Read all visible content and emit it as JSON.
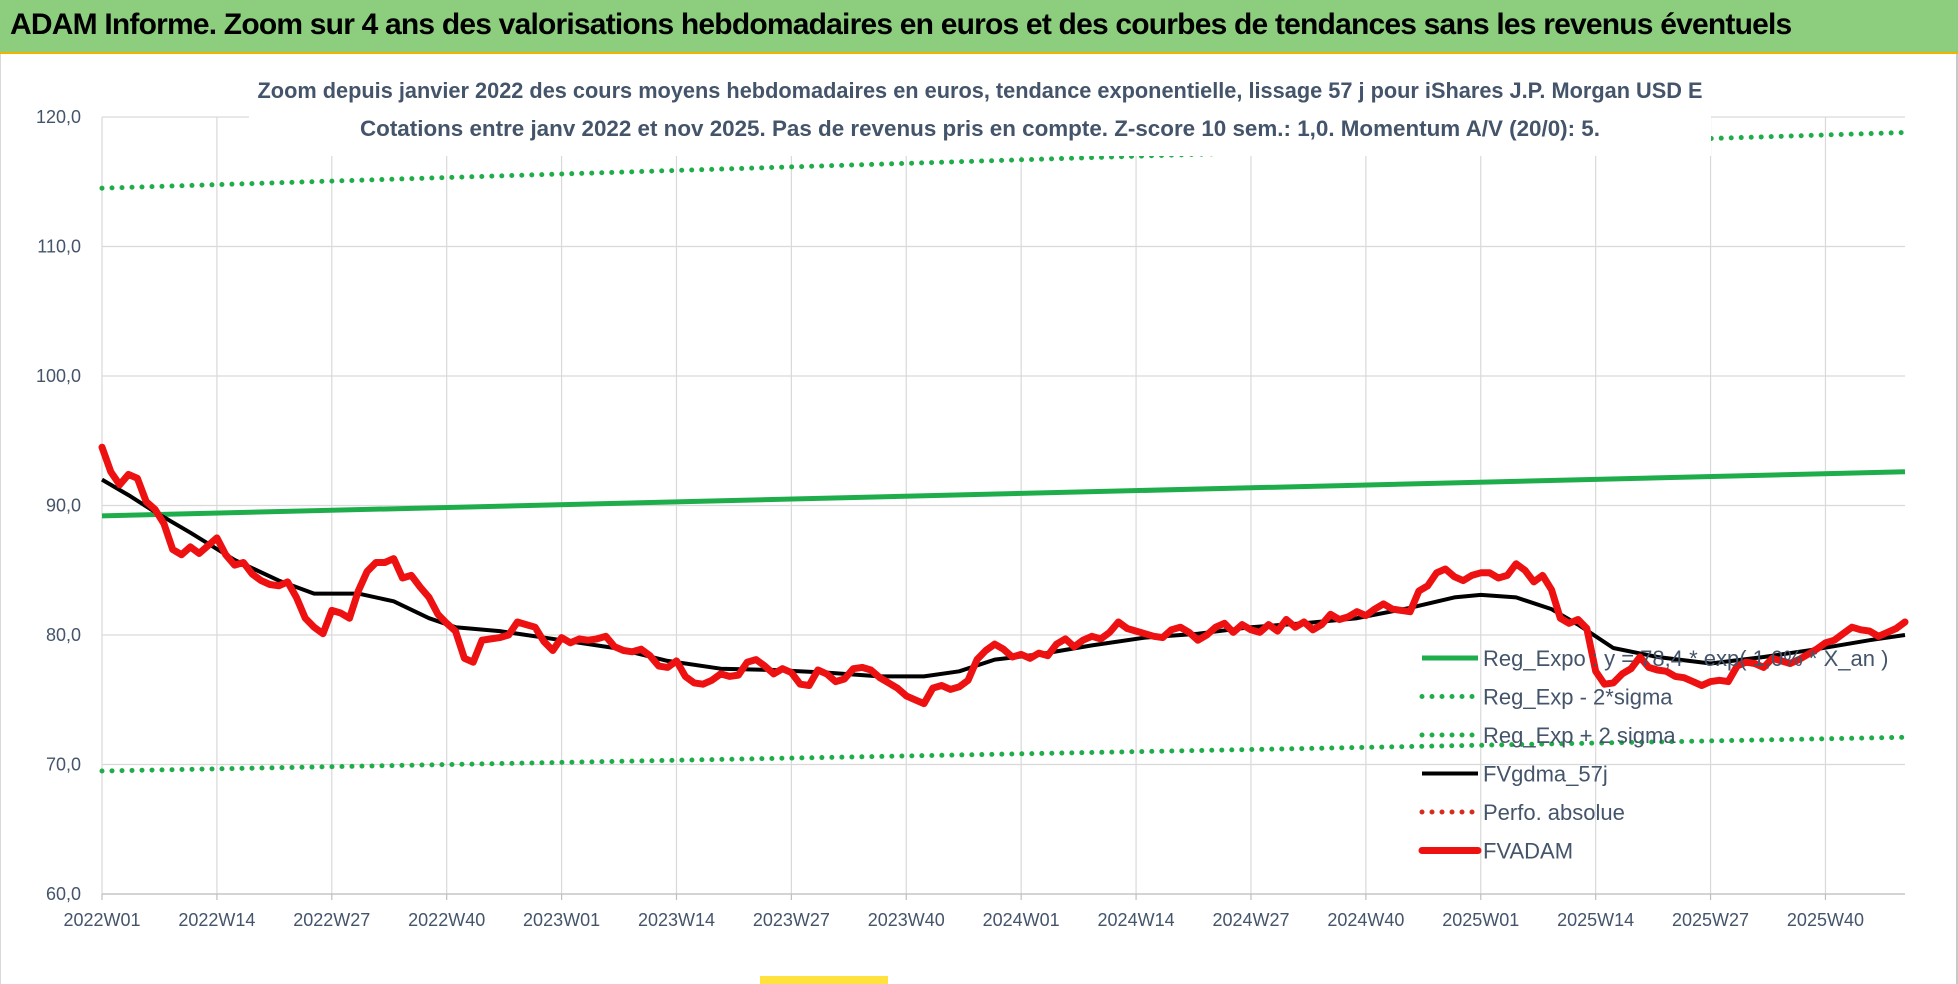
{
  "header": {
    "title": "ADAM Informe. Zoom sur 4 ans des valorisations hebdomadaires en euros et des courbes de tendances sans les revenus éventuels"
  },
  "chart_data": {
    "type": "line",
    "title": "",
    "subtitle_lines": [
      "Zoom depuis janvier 2022 des cours moyens hebdomadaires en euros, tendance exponentielle, lissage 57 j pour iShares J.P. Morgan USD E",
      "Cotations entre janv 2022 et nov 2025. Pas de revenus pris en compte. Z-score 10 sem.: 1,0. Momentum A/V (20/0): 5."
    ],
    "xlabel": "",
    "ylabel": "",
    "ylim": [
      60,
      120
    ],
    "xlim": [
      0,
      204
    ],
    "y_ticks": [
      "60,0",
      "70,0",
      "80,0",
      "90,0",
      "100,0",
      "110,0",
      "120,0"
    ],
    "x_ticks": [
      {
        "index": 0,
        "label": "2022W01"
      },
      {
        "index": 13,
        "label": "2022W14"
      },
      {
        "index": 26,
        "label": "2022W27"
      },
      {
        "index": 39,
        "label": "2022W40"
      },
      {
        "index": 52,
        "label": "2023W01"
      },
      {
        "index": 65,
        "label": "2023W14"
      },
      {
        "index": 78,
        "label": "2023W27"
      },
      {
        "index": 91,
        "label": "2023W40"
      },
      {
        "index": 104,
        "label": "2024W01"
      },
      {
        "index": 117,
        "label": "2024W14"
      },
      {
        "index": 130,
        "label": "2024W27"
      },
      {
        "index": 143,
        "label": "2024W40"
      },
      {
        "index": 156,
        "label": "2025W01"
      },
      {
        "index": 169,
        "label": "2025W14"
      },
      {
        "index": 182,
        "label": "2025W27"
      },
      {
        "index": 195,
        "label": "2025W40"
      }
    ],
    "grid": true,
    "legend_position": "bottom-right",
    "series": [
      {
        "name": "Reg_Expo : y = 78,4 * exp( 1,0% * X_an )",
        "color": "#1fad4b",
        "style": "solid",
        "points": [
          [
            0,
            89.2
          ],
          [
            204,
            92.6
          ]
        ]
      },
      {
        "name": "Reg_Exp - 2*sigma",
        "color": "#1fad4b",
        "style": "dotted",
        "points": [
          [
            0,
            69.5
          ],
          [
            204,
            72.1
          ]
        ]
      },
      {
        "name": "Reg_Exp + 2 sigma",
        "color": "#1fad4b",
        "style": "dotted",
        "points": [
          [
            0,
            114.5
          ],
          [
            204,
            118.8
          ]
        ]
      },
      {
        "name": "FVgdma_57j",
        "color": "#000000",
        "style": "solid",
        "points": [
          [
            0,
            92.0
          ],
          [
            3,
            90.8
          ],
          [
            6,
            89.5
          ],
          [
            10,
            87.9
          ],
          [
            15,
            85.8
          ],
          [
            20,
            84.2
          ],
          [
            24,
            83.2
          ],
          [
            29,
            83.2
          ],
          [
            33,
            82.6
          ],
          [
            37,
            81.3
          ],
          [
            40,
            80.6
          ],
          [
            45,
            80.3
          ],
          [
            52,
            79.6
          ],
          [
            58,
            79.0
          ],
          [
            64,
            78.0
          ],
          [
            70,
            77.4
          ],
          [
            76,
            77.3
          ],
          [
            82,
            77.1
          ],
          [
            88,
            76.8
          ],
          [
            93,
            76.8
          ],
          [
            97,
            77.2
          ],
          [
            101,
            78.1
          ],
          [
            106,
            78.5
          ],
          [
            112,
            79.2
          ],
          [
            118,
            79.8
          ],
          [
            124,
            80.1
          ],
          [
            130,
            80.6
          ],
          [
            136,
            80.9
          ],
          [
            142,
            81.3
          ],
          [
            148,
            82.1
          ],
          [
            153,
            82.9
          ],
          [
            156,
            83.1
          ],
          [
            160,
            82.9
          ],
          [
            164,
            82.0
          ],
          [
            167,
            80.8
          ],
          [
            171,
            79.0
          ],
          [
            176,
            78.3
          ],
          [
            182,
            77.8
          ],
          [
            188,
            78.3
          ],
          [
            194,
            78.9
          ],
          [
            200,
            79.6
          ],
          [
            204,
            80.0
          ]
        ]
      },
      {
        "name": "Perfo. absolue",
        "color": "#d62b1f",
        "style": "dotted",
        "points": []
      },
      {
        "name": "FVADAM",
        "color": "#ee1111",
        "style": "solid",
        "points": [
          [
            0,
            94.5
          ],
          [
            1,
            92.6
          ],
          [
            2,
            91.6
          ],
          [
            3,
            92.4
          ],
          [
            4,
            92.1
          ],
          [
            5,
            90.3
          ],
          [
            6,
            89.7
          ],
          [
            7,
            88.6
          ],
          [
            8,
            86.6
          ],
          [
            9,
            86.2
          ],
          [
            10,
            86.8
          ],
          [
            11,
            86.3
          ],
          [
            12,
            86.9
          ],
          [
            13,
            87.5
          ],
          [
            14,
            86.2
          ],
          [
            15,
            85.4
          ],
          [
            16,
            85.6
          ],
          [
            17,
            84.7
          ],
          [
            18,
            84.2
          ],
          [
            19,
            83.9
          ],
          [
            20,
            83.8
          ],
          [
            21,
            84.1
          ],
          [
            22,
            82.9
          ],
          [
            23,
            81.3
          ],
          [
            24,
            80.6
          ],
          [
            25,
            80.1
          ],
          [
            26,
            81.9
          ],
          [
            27,
            81.7
          ],
          [
            28,
            81.3
          ],
          [
            29,
            83.4
          ],
          [
            30,
            84.9
          ],
          [
            31,
            85.6
          ],
          [
            32,
            85.6
          ],
          [
            33,
            85.9
          ],
          [
            34,
            84.4
          ],
          [
            35,
            84.6
          ],
          [
            36,
            83.7
          ],
          [
            37,
            82.9
          ],
          [
            38,
            81.6
          ],
          [
            39,
            80.9
          ],
          [
            40,
            80.3
          ],
          [
            41,
            78.2
          ],
          [
            42,
            77.9
          ],
          [
            43,
            79.6
          ],
          [
            44,
            79.7
          ],
          [
            45,
            79.8
          ],
          [
            46,
            80.0
          ],
          [
            47,
            81.0
          ],
          [
            48,
            80.8
          ],
          [
            49,
            80.6
          ],
          [
            50,
            79.5
          ],
          [
            51,
            78.8
          ],
          [
            52,
            79.8
          ],
          [
            53,
            79.4
          ],
          [
            54,
            79.7
          ],
          [
            55,
            79.6
          ],
          [
            56,
            79.7
          ],
          [
            57,
            79.9
          ],
          [
            58,
            79.1
          ],
          [
            59,
            78.8
          ],
          [
            60,
            78.7
          ],
          [
            61,
            78.9
          ],
          [
            62,
            78.4
          ],
          [
            63,
            77.6
          ],
          [
            64,
            77.5
          ],
          [
            65,
            78.0
          ],
          [
            66,
            76.8
          ],
          [
            67,
            76.3
          ],
          [
            68,
            76.2
          ],
          [
            69,
            76.5
          ],
          [
            70,
            77.0
          ],
          [
            71,
            76.8
          ],
          [
            72,
            76.9
          ],
          [
            73,
            77.9
          ],
          [
            74,
            78.1
          ],
          [
            75,
            77.6
          ],
          [
            76,
            77.0
          ],
          [
            77,
            77.4
          ],
          [
            78,
            77.1
          ],
          [
            79,
            76.2
          ],
          [
            80,
            76.1
          ],
          [
            81,
            77.3
          ],
          [
            82,
            77.0
          ],
          [
            83,
            76.4
          ],
          [
            84,
            76.6
          ],
          [
            85,
            77.4
          ],
          [
            86,
            77.5
          ],
          [
            87,
            77.3
          ],
          [
            88,
            76.7
          ],
          [
            89,
            76.3
          ],
          [
            90,
            75.9
          ],
          [
            91,
            75.3
          ],
          [
            92,
            75.0
          ],
          [
            93,
            74.7
          ],
          [
            94,
            75.9
          ],
          [
            95,
            76.1
          ],
          [
            96,
            75.8
          ],
          [
            97,
            76.0
          ],
          [
            98,
            76.5
          ],
          [
            99,
            78.1
          ],
          [
            100,
            78.8
          ],
          [
            101,
            79.3
          ],
          [
            102,
            78.9
          ],
          [
            103,
            78.3
          ],
          [
            104,
            78.5
          ],
          [
            105,
            78.2
          ],
          [
            106,
            78.6
          ],
          [
            107,
            78.4
          ],
          [
            108,
            79.3
          ],
          [
            109,
            79.7
          ],
          [
            110,
            79.1
          ],
          [
            111,
            79.6
          ],
          [
            112,
            79.9
          ],
          [
            113,
            79.7
          ],
          [
            114,
            80.2
          ],
          [
            115,
            81.0
          ],
          [
            116,
            80.5
          ],
          [
            117,
            80.3
          ],
          [
            118,
            80.1
          ],
          [
            119,
            79.9
          ],
          [
            120,
            79.8
          ],
          [
            121,
            80.4
          ],
          [
            122,
            80.6
          ],
          [
            123,
            80.2
          ],
          [
            124,
            79.6
          ],
          [
            125,
            80.0
          ],
          [
            126,
            80.6
          ],
          [
            127,
            80.9
          ],
          [
            128,
            80.2
          ],
          [
            129,
            80.8
          ],
          [
            130,
            80.4
          ],
          [
            131,
            80.2
          ],
          [
            132,
            80.8
          ],
          [
            133,
            80.3
          ],
          [
            134,
            81.2
          ],
          [
            135,
            80.6
          ],
          [
            136,
            81.0
          ],
          [
            137,
            80.4
          ],
          [
            138,
            80.8
          ],
          [
            139,
            81.6
          ],
          [
            140,
            81.2
          ],
          [
            141,
            81.4
          ],
          [
            142,
            81.8
          ],
          [
            143,
            81.5
          ],
          [
            144,
            82.0
          ],
          [
            145,
            82.4
          ],
          [
            146,
            82.0
          ],
          [
            147,
            81.9
          ],
          [
            148,
            81.8
          ],
          [
            149,
            83.4
          ],
          [
            150,
            83.8
          ],
          [
            151,
            84.8
          ],
          [
            152,
            85.1
          ],
          [
            153,
            84.5
          ],
          [
            154,
            84.2
          ],
          [
            155,
            84.6
          ],
          [
            156,
            84.8
          ],
          [
            157,
            84.8
          ],
          [
            158,
            84.4
          ],
          [
            159,
            84.6
          ],
          [
            160,
            85.5
          ],
          [
            161,
            85.0
          ],
          [
            162,
            84.1
          ],
          [
            163,
            84.6
          ],
          [
            164,
            83.5
          ],
          [
            165,
            81.3
          ],
          [
            166,
            80.9
          ],
          [
            167,
            81.2
          ],
          [
            168,
            80.5
          ],
          [
            169,
            77.2
          ],
          [
            170,
            76.2
          ],
          [
            171,
            76.3
          ],
          [
            172,
            77.0
          ],
          [
            173,
            77.4
          ],
          [
            174,
            78.3
          ],
          [
            175,
            77.5
          ],
          [
            176,
            77.3
          ],
          [
            177,
            77.2
          ],
          [
            178,
            76.8
          ],
          [
            179,
            76.7
          ],
          [
            180,
            76.4
          ],
          [
            181,
            76.1
          ],
          [
            182,
            76.4
          ],
          [
            183,
            76.5
          ],
          [
            184,
            76.4
          ],
          [
            185,
            77.6
          ],
          [
            186,
            77.9
          ],
          [
            187,
            77.8
          ],
          [
            188,
            77.5
          ],
          [
            189,
            78.2
          ],
          [
            190,
            78.0
          ],
          [
            191,
            77.8
          ],
          [
            192,
            78.1
          ],
          [
            193,
            78.5
          ],
          [
            194,
            78.9
          ],
          [
            195,
            79.4
          ],
          [
            196,
            79.6
          ],
          [
            197,
            80.1
          ],
          [
            198,
            80.6
          ],
          [
            199,
            80.4
          ],
          [
            200,
            80.3
          ],
          [
            201,
            79.9
          ],
          [
            202,
            80.2
          ],
          [
            203,
            80.5
          ],
          [
            204,
            81.0
          ]
        ]
      }
    ]
  }
}
